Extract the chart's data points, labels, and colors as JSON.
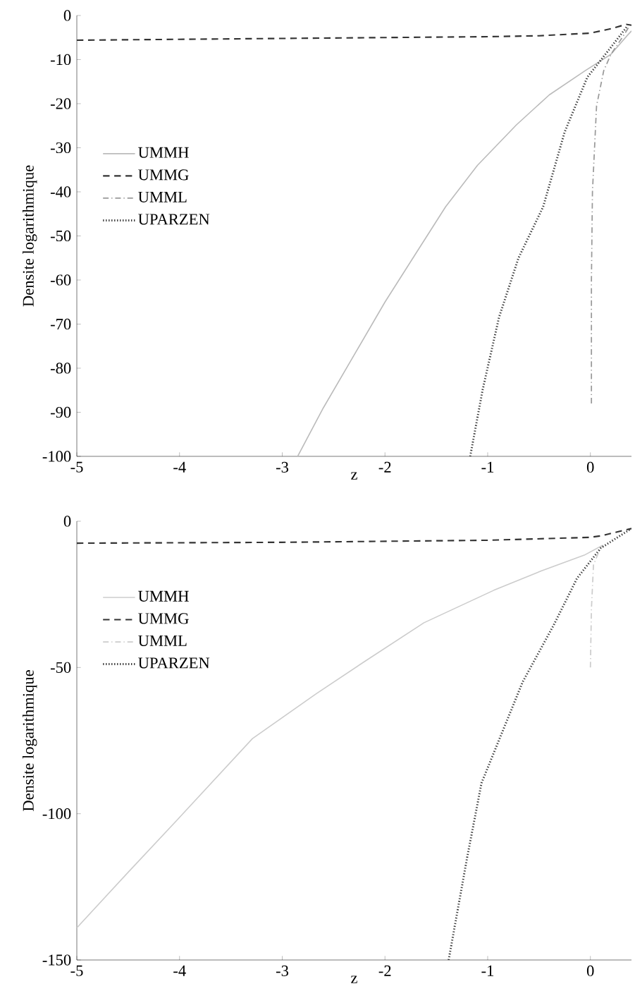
{
  "chart_data": [
    {
      "type": "line",
      "xlabel": "z",
      "ylabel": "Densite logarithmique",
      "xlim": [
        -5,
        0.4
      ],
      "ylim": [
        -100,
        0
      ],
      "xticks": [
        -5,
        -4,
        -3,
        -2,
        -1,
        0
      ],
      "yticks": [
        -100,
        -90,
        -80,
        -70,
        -60,
        -50,
        -40,
        -30,
        -20,
        -10,
        0
      ],
      "legend": "left",
      "series": [
        {
          "name": "UMMH",
          "color": "#bbbbbb",
          "line_style": "solid",
          "x": [
            -2.85,
            -2.6,
            -2.3,
            -2,
            -1.7,
            -1.41,
            -1.1,
            -0.72,
            -0.4,
            -0.05,
            0.2,
            0.36,
            0.4
          ],
          "values": [
            -100,
            -89,
            -77,
            -65,
            -54,
            -43.4,
            -34,
            -24.8,
            -18,
            -12.5,
            -8.8,
            -4.5,
            -3.5
          ]
        },
        {
          "name": "UMMG",
          "color": "#333333",
          "line_style": "dashed",
          "x": [
            -5,
            -4,
            -3,
            -2,
            -1,
            -0.5,
            0,
            0.2,
            0.35,
            0.4
          ],
          "values": [
            -5.6,
            -5.4,
            -5.2,
            -5,
            -4.8,
            -4.6,
            -4,
            -3,
            -2,
            -2.2
          ]
        },
        {
          "name": "UMML",
          "color": "#999999",
          "line_style": "dashdot",
          "x": [
            0.01,
            0.01,
            0.02,
            0.06,
            0.13,
            0.2,
            0.31,
            0.38
          ],
          "values": [
            -88,
            -60,
            -40,
            -20.5,
            -12.5,
            -8.8,
            -5,
            -2.4
          ]
        },
        {
          "name": "UPARZEN",
          "color": "#333333",
          "line_style": "dotted",
          "x": [
            -1.17,
            -1.05,
            -0.89,
            -0.7,
            -0.46,
            -0.25,
            -0.03,
            0.2,
            0.36
          ],
          "values": [
            -100,
            -85,
            -68.5,
            -55,
            -43.4,
            -26.4,
            -14,
            -7.2,
            -2.4
          ]
        }
      ]
    },
    {
      "type": "line",
      "xlabel": "z",
      "ylabel": "Densite logarithmique",
      "xlim": [
        -5,
        0.4
      ],
      "ylim": [
        -150,
        0
      ],
      "xticks": [
        -5,
        -4,
        -3,
        -2,
        -1,
        0
      ],
      "yticks": [
        -150,
        -100,
        -50,
        0
      ],
      "legend": "left",
      "series": [
        {
          "name": "UMMH",
          "color": "#cccccc",
          "line_style": "solid",
          "x": [
            -5,
            -4.5,
            -4.02,
            -3.29,
            -2.67,
            -2.2,
            -1.62,
            -0.94,
            -0.48,
            -0.06,
            0.12
          ],
          "values": [
            -139,
            -120,
            -102,
            -74.3,
            -59,
            -48,
            -34.7,
            -23.6,
            -17,
            -11.6,
            -8.2
          ]
        },
        {
          "name": "UMMG",
          "color": "#333333",
          "line_style": "dashed",
          "x": [
            -5,
            -3,
            -1,
            0,
            0.1,
            0.4
          ],
          "values": [
            -7.5,
            -7.2,
            -6.5,
            -5.5,
            -5,
            -2.5
          ]
        },
        {
          "name": "UMML",
          "color": "#cccccc",
          "line_style": "dashdot",
          "x": [
            0,
            0.01,
            0.03,
            0.08,
            0.12
          ],
          "values": [
            -50,
            -30,
            -15,
            -10.6,
            -8.5
          ]
        },
        {
          "name": "UPARZEN",
          "color": "#333333",
          "line_style": "dotted",
          "x": [
            -1.38,
            -1.2,
            -1.06,
            -0.66,
            -0.36,
            -0.13,
            0.1,
            0.39
          ],
          "values": [
            -150,
            -115,
            -89.5,
            -55,
            -35.7,
            -19.5,
            -9.2,
            -2.7
          ]
        }
      ]
    }
  ]
}
